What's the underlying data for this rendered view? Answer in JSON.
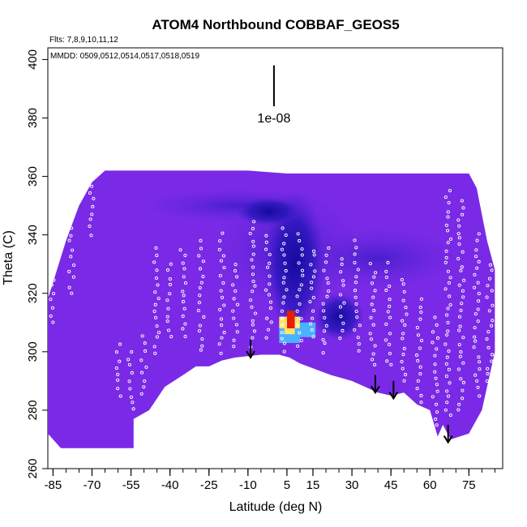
{
  "chart_data": {
    "type": "heatmap",
    "title": "ATOM4 Northbound COBBAF_GEOS5",
    "xlabel": "Latitude (deg N)",
    "ylabel": "Theta (C)",
    "xlim": [
      -87,
      88
    ],
    "ylim": [
      260,
      404
    ],
    "x_ticks": [
      -85,
      -70,
      -55,
      -40,
      -25,
      -10,
      5,
      15,
      30,
      45,
      60,
      75
    ],
    "y_ticks": [
      260,
      280,
      300,
      320,
      340,
      360,
      380,
      400
    ],
    "flights_label": "Flts: 7,8,9,10,11,12",
    "dates_label": "MMDD: 0509,0512,0514,0517,0518,0519",
    "scale_label": "1e-08",
    "scale_bar": {
      "x": 0,
      "y_bottom": 384,
      "y_top": 398
    },
    "colors": {
      "background": "#7a2ae6",
      "mid": "#4b1fd0",
      "deep": "#1a10a8",
      "cyan": "#49b3ff",
      "yellow": "#ffe36a",
      "red": "#e81e00",
      "points": "#ffffff"
    },
    "field_top": [
      [
        -87,
        318
      ],
      [
        -80,
        338
      ],
      [
        -75,
        350
      ],
      [
        -70,
        358
      ],
      [
        -65,
        362
      ],
      [
        -60,
        362
      ],
      [
        -55,
        362
      ],
      [
        -40,
        362
      ],
      [
        -25,
        362
      ],
      [
        -10,
        362
      ],
      [
        5,
        361
      ],
      [
        20,
        361
      ],
      [
        40,
        361
      ],
      [
        60,
        361
      ],
      [
        70,
        361
      ],
      [
        75,
        361
      ],
      [
        78,
        356
      ],
      [
        80,
        347
      ],
      [
        82,
        338
      ],
      [
        85,
        328
      ]
    ],
    "field_bottom": [
      [
        -87,
        272
      ],
      [
        -82,
        267
      ],
      [
        -54,
        267
      ],
      [
        -54,
        277
      ],
      [
        -48,
        280
      ],
      [
        -42,
        288
      ],
      [
        -35,
        292
      ],
      [
        -30,
        295
      ],
      [
        -25,
        295
      ],
      [
        -20,
        297
      ],
      [
        -15,
        298
      ],
      [
        -5,
        299
      ],
      [
        2,
        299
      ],
      [
        6,
        298
      ],
      [
        10,
        296
      ],
      [
        16,
        294
      ],
      [
        22,
        292
      ],
      [
        30,
        290
      ],
      [
        40,
        286
      ],
      [
        45,
        285
      ],
      [
        50,
        286
      ],
      [
        55,
        282
      ],
      [
        60,
        280
      ],
      [
        63,
        271
      ],
      [
        65,
        275
      ],
      [
        68,
        270
      ],
      [
        75,
        272
      ],
      [
        80,
        280
      ],
      [
        85,
        300
      ]
    ],
    "hotspot": {
      "cells": [
        {
          "x": [
            2,
            10
          ],
          "y": [
            303,
            308
          ],
          "level": "cyan"
        },
        {
          "x": [
            10,
            16
          ],
          "y": [
            305,
            310
          ],
          "level": "cyan"
        },
        {
          "x": [
            4,
            8
          ],
          "y": [
            306,
            310
          ],
          "level": "yellow"
        },
        {
          "x": [
            5,
            8
          ],
          "y": [
            308,
            314
          ],
          "level": "red"
        },
        {
          "x": [
            2,
            5
          ],
          "y": [
            308,
            312
          ],
          "level": "yellow"
        },
        {
          "x": [
            8,
            10
          ],
          "y": [
            308,
            312
          ],
          "level": "yellow"
        }
      ]
    },
    "arrows": [
      {
        "x": -9,
        "y_top": 304,
        "y_bottom": 298
      },
      {
        "x": 39,
        "y_top": 292,
        "y_bottom": 286
      },
      {
        "x": 46,
        "y_top": 290,
        "y_bottom": 284
      },
      {
        "x": 67,
        "y_top": 275,
        "y_bottom": 269
      }
    ],
    "point_tracks": [
      {
        "lat": -85,
        "theta": [
          310,
          330
        ]
      },
      {
        "lat": -78,
        "theta": [
          320,
          345
        ]
      },
      {
        "lat": -70,
        "theta": [
          340,
          362
        ]
      },
      {
        "lat": -60,
        "theta": [
          285,
          302
        ]
      },
      {
        "lat": -55,
        "theta": [
          280,
          300
        ]
      },
      {
        "lat": -50,
        "theta": [
          285,
          305
        ]
      },
      {
        "lat": -45,
        "theta": [
          300,
          335
        ]
      },
      {
        "lat": -40,
        "theta": [
          305,
          330
        ]
      },
      {
        "lat": -35,
        "theta": [
          305,
          335
        ]
      },
      {
        "lat": -28,
        "theta": [
          300,
          338
        ]
      },
      {
        "lat": -20,
        "theta": [
          300,
          340
        ]
      },
      {
        "lat": -15,
        "theta": [
          302,
          330
        ]
      },
      {
        "lat": -8,
        "theta": [
          302,
          345
        ]
      },
      {
        "lat": -2,
        "theta": [
          305,
          340
        ]
      },
      {
        "lat": 4,
        "theta": [
          300,
          342
        ]
      },
      {
        "lat": 10,
        "theta": [
          302,
          340
        ]
      },
      {
        "lat": 15,
        "theta": [
          305,
          335
        ]
      },
      {
        "lat": 20,
        "theta": [
          300,
          335
        ]
      },
      {
        "lat": 26,
        "theta": [
          305,
          332
        ]
      },
      {
        "lat": 32,
        "theta": [
          300,
          338
        ]
      },
      {
        "lat": 38,
        "theta": [
          295,
          330
        ]
      },
      {
        "lat": 44,
        "theta": [
          295,
          330
        ]
      },
      {
        "lat": 50,
        "theta": [
          290,
          325
        ]
      },
      {
        "lat": 56,
        "theta": [
          280,
          318
        ]
      },
      {
        "lat": 62,
        "theta": [
          275,
          312
        ]
      },
      {
        "lat": 67,
        "theta": [
          278,
          355
        ]
      },
      {
        "lat": 72,
        "theta": [
          280,
          352
        ]
      },
      {
        "lat": 78,
        "theta": [
          285,
          340
        ]
      },
      {
        "lat": 83,
        "theta": [
          290,
          330
        ]
      }
    ]
  }
}
